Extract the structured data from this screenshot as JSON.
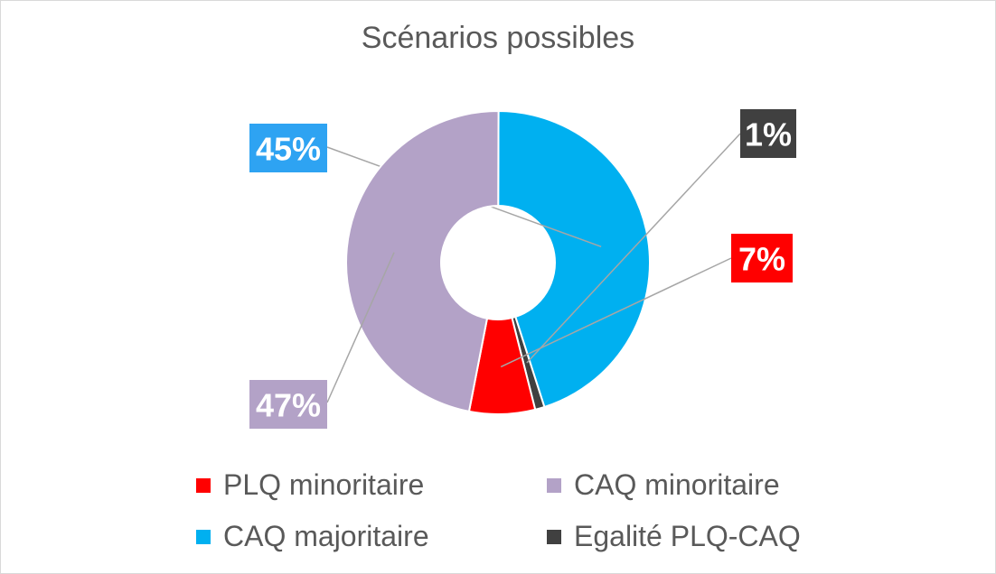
{
  "chart_data": {
    "type": "pie",
    "title": "Scénarios possibles",
    "slices": [
      {
        "name": "PLQ minoritaire",
        "value": 7,
        "label": "7%",
        "color": "#ff0000"
      },
      {
        "name": "CAQ minoritaire",
        "value": 47,
        "label": "47%",
        "color": "#b3a2c7"
      },
      {
        "name": "CAQ majoritaire",
        "value": 45,
        "label": "45%",
        "color": "#00b0f0"
      },
      {
        "name": "Egalité PLQ-CAQ",
        "value": 1,
        "label": "1%",
        "color": "#404040"
      }
    ],
    "legend_position": "bottom"
  }
}
